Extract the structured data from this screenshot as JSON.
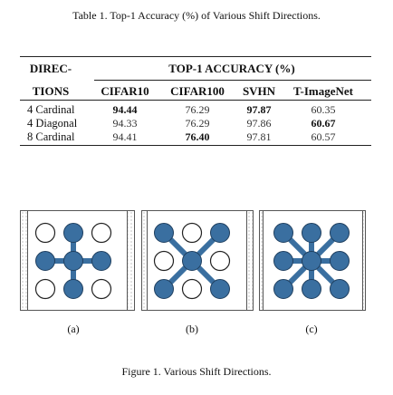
{
  "table": {
    "caption": "Table 1. Top-1 Accuracy (%) of Various Shift Directions.",
    "header_dir_line1": "DIREC-",
    "header_dir_line2": "TIONS",
    "header_group": "TOP-1 ACCURACY (%)",
    "columns": [
      "CIFAR10",
      "CIFAR100",
      "SVHN",
      "T-ImageNet"
    ],
    "rows": [
      {
        "label": "4 Cardinal",
        "values": [
          "94.44",
          "76.29",
          "97.87",
          "60.35"
        ],
        "bold": [
          true,
          false,
          true,
          false
        ]
      },
      {
        "label": "4 Diagonal",
        "values": [
          "94.33",
          "76.29",
          "97.86",
          "60.67"
        ],
        "bold": [
          false,
          false,
          false,
          true
        ]
      },
      {
        "label": "8 Cardinal",
        "values": [
          "94.41",
          "76.40",
          "97.81",
          "60.57"
        ],
        "bold": [
          false,
          true,
          false,
          false
        ]
      }
    ]
  },
  "figure": {
    "caption": "Figure 1. Various Shift Directions.",
    "sub_labels": [
      "(a)",
      "(b)",
      "(c)"
    ],
    "circle_fill_color": "#3a6fa0",
    "circle_edge_color": "#1f3f5f"
  }
}
